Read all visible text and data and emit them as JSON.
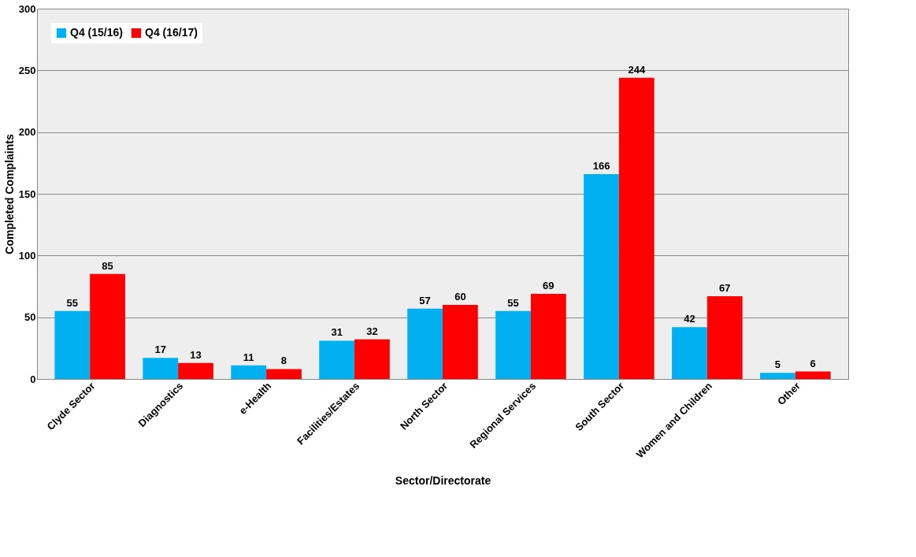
{
  "chart_data": {
    "type": "bar",
    "xlabel": "Sector/Directorate",
    "ylabel": "Completed Complaints",
    "categories": [
      "Clyde Sector",
      "Diagnostics",
      "e-Health",
      "Facilities/Estates",
      "North Sector",
      "Regional Services",
      "South Sector",
      "Women and Children",
      "Other"
    ],
    "series": [
      {
        "name": "Q4 (15/16)",
        "color": "#00b0f0",
        "values": [
          55,
          17,
          11,
          31,
          57,
          55,
          166,
          42,
          5
        ]
      },
      {
        "name": "Q4 (16/17)",
        "color": "#ff0000",
        "values": [
          85,
          13,
          8,
          32,
          60,
          69,
          244,
          67,
          6
        ]
      }
    ],
    "ylim": [
      0,
      300
    ],
    "yticks": [
      0,
      50,
      100,
      150,
      200,
      250,
      300
    ],
    "grid": "y",
    "legend": "top left",
    "data_labels": true
  }
}
